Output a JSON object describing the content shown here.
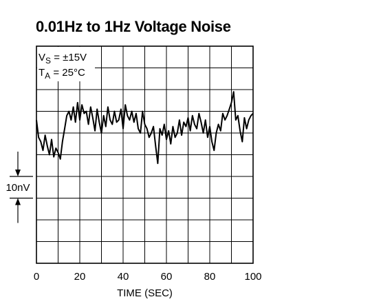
{
  "chart_data": {
    "type": "line",
    "title": "0.01Hz to 1Hz Voltage Noise",
    "xlabel": "TIME (SEC)",
    "ylabel": "",
    "xlim": [
      0,
      100
    ],
    "x_ticks": [
      0,
      20,
      40,
      60,
      80,
      100
    ],
    "x_tick_labels": [
      "0",
      "20",
      "40",
      "60",
      "80",
      "100"
    ],
    "x_divisions": 10,
    "y_divisions": 10,
    "grid": true,
    "conditions": {
      "vs_prefix": "V",
      "vs_sub": "S",
      "vs_value": " = ±15V",
      "ta_prefix": "T",
      "ta_sub": "A",
      "ta_value": " = 25°C"
    },
    "scale_marker": {
      "label": "10nV",
      "value_nV": 10,
      "divisions": 1
    },
    "series": [
      {
        "y_units": "divisions (1 div = 10nV)",
        "x": [
          0,
          1,
          2,
          3,
          4,
          5,
          6,
          7,
          8,
          9,
          10,
          11,
          12,
          13,
          14,
          15,
          16,
          17,
          18,
          19,
          20,
          21,
          22,
          23,
          24,
          25,
          26,
          27,
          28,
          29,
          30,
          31,
          32,
          33,
          34,
          35,
          36,
          37,
          38,
          39,
          40,
          41,
          42,
          43,
          44,
          45,
          46,
          47,
          48,
          49,
          50,
          51,
          52,
          53,
          54,
          55,
          56,
          57,
          58,
          59,
          60,
          61,
          62,
          63,
          64,
          65,
          66,
          67,
          68,
          69,
          70,
          71,
          72,
          73,
          74,
          75,
          76,
          77,
          78,
          79,
          80,
          81,
          82,
          83,
          84,
          85,
          86,
          87,
          88,
          89,
          90,
          91,
          92,
          93,
          94,
          95,
          96,
          97,
          98,
          99,
          100
        ],
        "values": [
          6.6,
          5.8,
          5.6,
          5.2,
          5.9,
          5.4,
          5.0,
          5.7,
          4.9,
          5.3,
          5.1,
          4.8,
          5.6,
          6.2,
          6.8,
          7.0,
          6.6,
          7.2,
          6.5,
          7.4,
          6.6,
          7.3,
          6.9,
          7.0,
          6.4,
          7.2,
          6.7,
          6.1,
          7.1,
          6.5,
          6.0,
          6.8,
          6.3,
          7.2,
          6.6,
          6.4,
          7.0,
          6.5,
          6.6,
          7.1,
          6.2,
          7.3,
          6.8,
          6.6,
          7.0,
          6.5,
          6.9,
          6.2,
          6.0,
          7.0,
          6.4,
          6.2,
          5.8,
          6.0,
          6.3,
          5.4,
          4.6,
          6.2,
          5.9,
          6.4,
          5.7,
          6.1,
          5.5,
          6.3,
          5.8,
          6.0,
          6.6,
          5.9,
          6.5,
          6.3,
          6.7,
          6.1,
          6.8,
          6.4,
          6.2,
          6.9,
          6.5,
          6.0,
          6.6,
          5.8,
          6.3,
          5.6,
          5.2,
          6.0,
          6.4,
          6.1,
          6.9,
          6.6,
          6.8,
          7.1,
          7.4,
          7.9,
          6.6,
          6.8,
          6.1,
          5.6,
          6.7,
          6.2,
          6.6,
          6.8,
          6.9
        ]
      }
    ]
  }
}
